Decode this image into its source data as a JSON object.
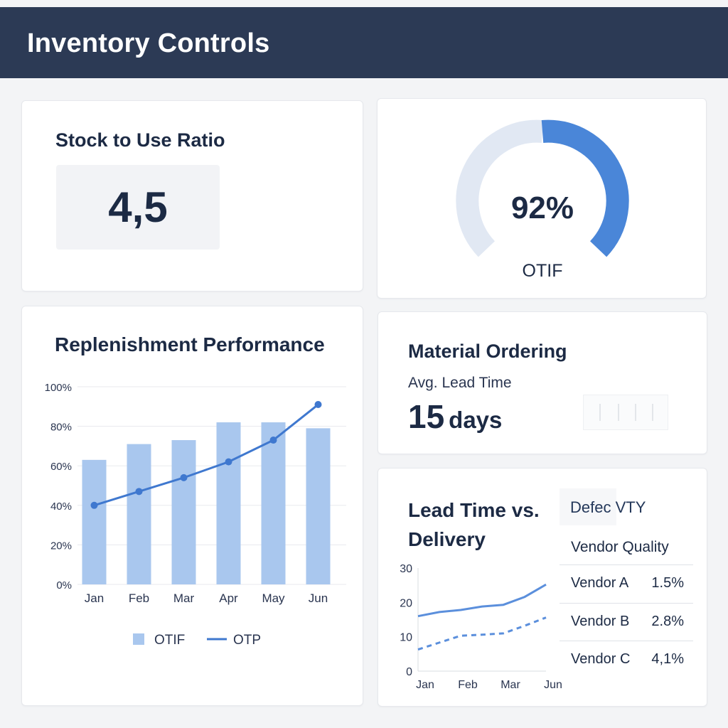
{
  "header": {
    "title": "Inventory Controls"
  },
  "stock": {
    "title": "Stock to Use Ratio",
    "value": "4,5"
  },
  "otif_gauge": {
    "value_label": "92%",
    "value": 92,
    "label": "OTIF",
    "fill_color": "#4a86d8",
    "track_color": "#e1e8f3"
  },
  "replenishment": {
    "title": "Replenishment Performance"
  },
  "material_ordering": {
    "title": "Material Ordering",
    "subtitle": "Avg. Lead Time",
    "value": "15",
    "unit": "days"
  },
  "lead_time": {
    "title": "Lead Time vs. Delivery",
    "side_label": "Defec VTY",
    "vendor_title": "Vendor Quality",
    "vendors": [
      {
        "name": "Vendor A",
        "value": "1.5%"
      },
      {
        "name": "Vendor B",
        "value": "2.8%"
      },
      {
        "name": "Vendor C",
        "value": "4,1%"
      }
    ]
  },
  "chart_data": [
    {
      "type": "bar",
      "categories": [
        "Jan",
        "Feb",
        "Mar",
        "Apr",
        "May",
        "Jun"
      ],
      "series": [
        {
          "name": "OTIF",
          "kind": "bar",
          "values": [
            63,
            71,
            73,
            82,
            82,
            79
          ],
          "color": "#a9c7ee"
        },
        {
          "name": "OTP",
          "kind": "line",
          "values": [
            40,
            47,
            54,
            62,
            73,
            91
          ],
          "color": "#3f78cf"
        }
      ],
      "yticks": [
        "100%",
        "80%",
        "60%",
        "40%",
        "20%",
        "0%"
      ],
      "ylim": [
        0,
        100
      ],
      "grid": true,
      "legend": "bottom"
    },
    {
      "type": "line",
      "categories": [
        "Jan",
        "Feb",
        "Mar",
        "Jun"
      ],
      "x": [
        1,
        2,
        3,
        4
      ],
      "series": [
        {
          "style": "solid",
          "values": [
            [
              1,
              16
            ],
            [
              1.5,
              17.2
            ],
            [
              2,
              17.8
            ],
            [
              2.5,
              18.8
            ],
            [
              3,
              19.3
            ],
            [
              3.5,
              21.6
            ],
            [
              4,
              25.2
            ]
          ],
          "color": "#5b8fdc"
        },
        {
          "style": "dashed",
          "values": [
            [
              1,
              6.3
            ],
            [
              1.5,
              8.3
            ],
            [
              2,
              10.3
            ],
            [
              2.5,
              10.6
            ],
            [
              3,
              11
            ],
            [
              3.5,
              13.2
            ],
            [
              4,
              15.6
            ]
          ],
          "color": "#5b8fdc"
        }
      ],
      "yticks": [
        "30",
        "20",
        "10",
        "0"
      ],
      "ylim": [
        0,
        30
      ]
    }
  ]
}
